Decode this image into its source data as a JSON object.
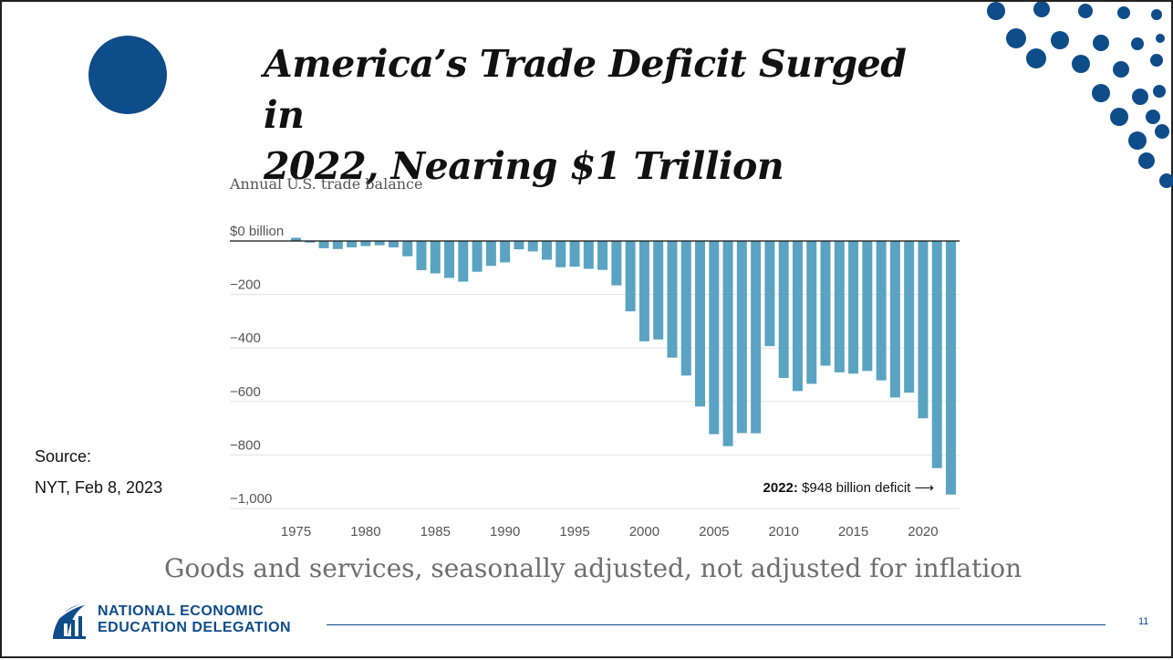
{
  "slide": {
    "title_line1": "America’s Trade Deficit Surged in",
    "title_line2": "2022, Nearing $1 Trillion",
    "source_label": "Source:",
    "source_detail": "NYT, Feb 8, 2023",
    "caption": "Goods and services, seasonally adjusted, not adjusted for inflation",
    "org_line1": "NATIONAL ECONOMIC",
    "org_line2": "EDUCATION DELEGATION",
    "page_number": "11",
    "colors": {
      "accent": "#0f4c8a",
      "bar": "#5aa3c2"
    }
  },
  "chart_data": {
    "type": "bar",
    "title": "Annual U.S. trade balance",
    "xlabel": "",
    "ylabel": "",
    "unit": "billion",
    "x": [
      1975,
      1976,
      1977,
      1978,
      1979,
      1980,
      1981,
      1982,
      1983,
      1984,
      1985,
      1986,
      1987,
      1988,
      1989,
      1990,
      1991,
      1992,
      1993,
      1994,
      1995,
      1996,
      1997,
      1998,
      1999,
      2000,
      2001,
      2002,
      2003,
      2004,
      2005,
      2006,
      2007,
      2008,
      2009,
      2010,
      2011,
      2012,
      2013,
      2014,
      2015,
      2016,
      2017,
      2018,
      2019,
      2020,
      2021,
      2022
    ],
    "values": [
      12,
      -6,
      -27,
      -30,
      -24,
      -19,
      -16,
      -24,
      -57,
      -109,
      -121,
      -138,
      -152,
      -115,
      -93,
      -80,
      -31,
      -39,
      -70,
      -98,
      -96,
      -104,
      -108,
      -166,
      -263,
      -375,
      -368,
      -436,
      -503,
      -619,
      -722,
      -767,
      -718,
      -719,
      -393,
      -512,
      -561,
      -534,
      -466,
      -491,
      -496,
      -486,
      -521,
      -585,
      -567,
      -663,
      -849,
      -948
    ],
    "ylim": [
      -1000,
      0
    ],
    "y_ticks": [
      0,
      -200,
      -400,
      -600,
      -800,
      -1000
    ],
    "y_tick_labels": [
      "$0 billion",
      "−200",
      "−400",
      "−600",
      "−800",
      "−1,000"
    ],
    "x_ticks": [
      1975,
      1980,
      1985,
      1990,
      1995,
      2000,
      2005,
      2010,
      2015,
      2020
    ],
    "x_tick_labels": [
      "1975",
      "1980",
      "1985",
      "1990",
      "1995",
      "2000",
      "2005",
      "2010",
      "2015",
      "2020"
    ],
    "grid": true,
    "annotation": {
      "bold": "2022:",
      "text": "$948 billion deficit",
      "arrow": "⟶"
    }
  }
}
